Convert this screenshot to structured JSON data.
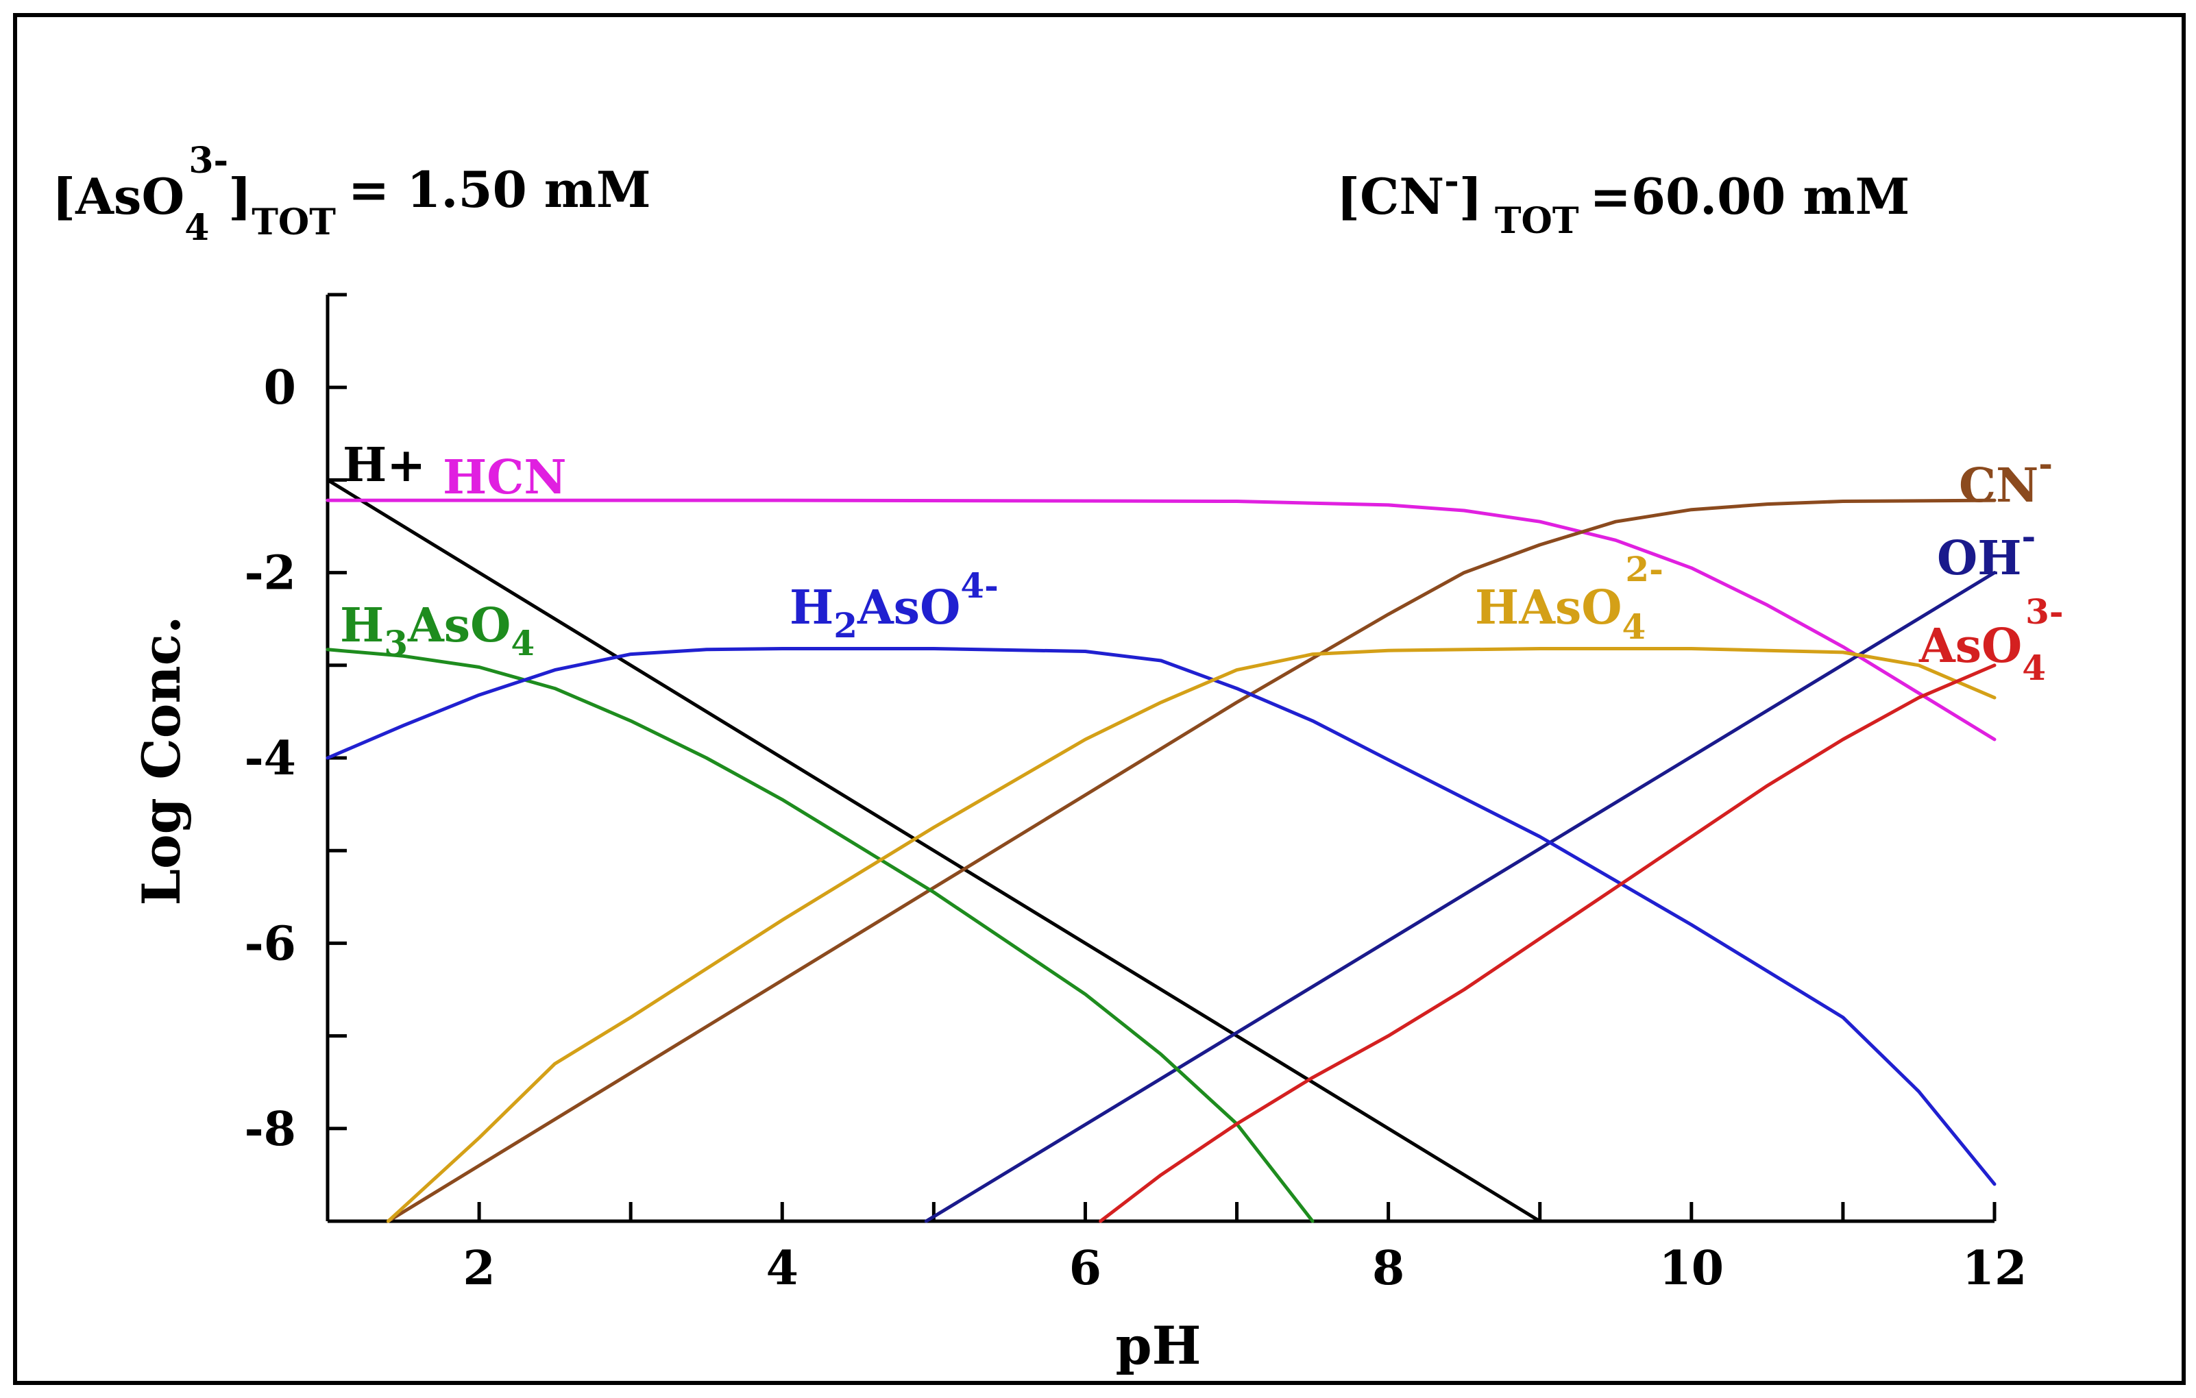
{
  "chart_data": {
    "type": "line",
    "title_left": {
      "prefix": "[AsO",
      "sub": "4",
      "sup": "3-",
      "close": "]",
      "tot": "TOT",
      "value": "= 1.50 mM"
    },
    "title_right": {
      "prefix": "[CN",
      "sup": "-",
      "close": "]",
      "tot": "TOT",
      "value": "=60.00 mM"
    },
    "xlabel": "pH",
    "ylabel": "Log Conc.",
    "xlim": [
      1,
      12
    ],
    "ylim": [
      -9,
      1
    ],
    "xticks": [
      2,
      4,
      6,
      8,
      10,
      12
    ],
    "yticks": [
      0,
      -2,
      -4,
      -6,
      -8
    ],
    "xtick_labels": [
      "2",
      "4",
      "6",
      "8",
      "10",
      "12"
    ],
    "ytick_labels": [
      "0",
      "-2",
      "-4",
      "-6",
      "-8"
    ],
    "series": [
      {
        "name": "H+",
        "color": "#000000",
        "points": [
          [
            1,
            -1
          ],
          [
            9,
            -9
          ]
        ]
      },
      {
        "name": "HCN",
        "color": "#e020e0",
        "points": [
          [
            1,
            -1.22
          ],
          [
            4,
            -1.22
          ],
          [
            7,
            -1.23
          ],
          [
            8,
            -1.27
          ],
          [
            8.5,
            -1.33
          ],
          [
            9,
            -1.45
          ],
          [
            9.5,
            -1.65
          ],
          [
            10,
            -1.95
          ],
          [
            10.5,
            -2.35
          ],
          [
            11,
            -2.8
          ],
          [
            11.5,
            -3.3
          ],
          [
            12,
            -3.8
          ]
        ]
      },
      {
        "name": "CN-",
        "color": "#8b4a1e",
        "points": [
          [
            1.4,
            -9
          ],
          [
            2,
            -8.4
          ],
          [
            3,
            -7.4
          ],
          [
            4,
            -6.4
          ],
          [
            5,
            -5.4
          ],
          [
            6,
            -4.4
          ],
          [
            7,
            -3.4
          ],
          [
            8,
            -2.45
          ],
          [
            8.5,
            -2.0
          ],
          [
            9,
            -1.7
          ],
          [
            9.5,
            -1.45
          ],
          [
            10,
            -1.32
          ],
          [
            10.5,
            -1.26
          ],
          [
            11,
            -1.23
          ],
          [
            12,
            -1.22
          ]
        ]
      },
      {
        "name": "OH-",
        "color": "#1a1a8c",
        "points": [
          [
            4.95,
            -9
          ],
          [
            12,
            -2
          ]
        ]
      },
      {
        "name": "H3AsO4",
        "color": "#1e8c1e",
        "points": [
          [
            1,
            -2.83
          ],
          [
            1.5,
            -2.9
          ],
          [
            2,
            -3.02
          ],
          [
            2.5,
            -3.25
          ],
          [
            3,
            -3.6
          ],
          [
            3.5,
            -4.0
          ],
          [
            4,
            -4.45
          ],
          [
            5,
            -5.45
          ],
          [
            6,
            -6.55
          ],
          [
            6.5,
            -7.2
          ],
          [
            7,
            -7.95
          ],
          [
            7.5,
            -9
          ]
        ]
      },
      {
        "name": "H2AsO4-",
        "color": "#2020d0",
        "points": [
          [
            1,
            -4.0
          ],
          [
            1.5,
            -3.65
          ],
          [
            2,
            -3.32
          ],
          [
            2.5,
            -3.05
          ],
          [
            3,
            -2.88
          ],
          [
            3.5,
            -2.83
          ],
          [
            4,
            -2.82
          ],
          [
            5,
            -2.82
          ],
          [
            6,
            -2.85
          ],
          [
            6.5,
            -2.95
          ],
          [
            7,
            -3.25
          ],
          [
            7.5,
            -3.6
          ],
          [
            8,
            -4.02
          ],
          [
            9,
            -4.85
          ],
          [
            10,
            -5.8
          ],
          [
            11,
            -6.8
          ],
          [
            11.5,
            -7.6
          ],
          [
            12,
            -8.6
          ]
        ]
      },
      {
        "name": "HAsO4 2-",
        "color": "#d4a017",
        "points": [
          [
            1.4,
            -9
          ],
          [
            2,
            -8.1
          ],
          [
            2.5,
            -7.3
          ],
          [
            3,
            -6.8
          ],
          [
            4,
            -5.75
          ],
          [
            5,
            -4.75
          ],
          [
            6,
            -3.8
          ],
          [
            6.5,
            -3.4
          ],
          [
            7,
            -3.05
          ],
          [
            7.5,
            -2.88
          ],
          [
            8,
            -2.84
          ],
          [
            9,
            -2.82
          ],
          [
            10,
            -2.82
          ],
          [
            10.5,
            -2.84
          ],
          [
            11,
            -2.86
          ],
          [
            11.5,
            -3.0
          ],
          [
            12,
            -3.35
          ]
        ]
      },
      {
        "name": "AsO4 3-",
        "color": "#d42020",
        "points": [
          [
            6.1,
            -9
          ],
          [
            6.5,
            -8.5
          ],
          [
            7,
            -7.95
          ],
          [
            7.5,
            -7.45
          ],
          [
            8,
            -7.0
          ],
          [
            8.5,
            -6.5
          ],
          [
            9,
            -5.95
          ],
          [
            9.5,
            -5.4
          ],
          [
            10,
            -4.85
          ],
          [
            10.5,
            -4.3
          ],
          [
            11,
            -3.8
          ],
          [
            11.5,
            -3.35
          ],
          [
            12,
            -3.0
          ]
        ]
      }
    ],
    "labels": {
      "h_plus": "H+",
      "hcn": "HCN",
      "cn": {
        "base": "CN",
        "sup": "-"
      },
      "oh": {
        "base": "OH",
        "sup": "-"
      },
      "h3aso4": {
        "a": "H",
        "b": "3",
        "c": "AsO",
        "d": "4"
      },
      "h2aso4": {
        "a": "H",
        "b": "2",
        "c": "AsO",
        "sup": "4-"
      },
      "haso4": {
        "a": "HAsO",
        "sub": "4",
        "sup": "2-"
      },
      "aso4": {
        "a": "AsO",
        "sub": "4",
        "sup": "3-"
      }
    }
  }
}
